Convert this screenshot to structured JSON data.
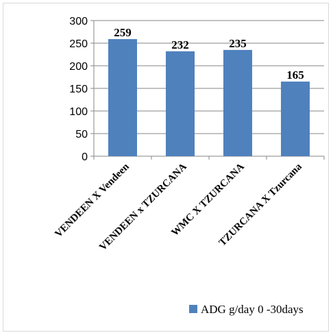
{
  "chart_data": {
    "type": "bar",
    "categories": [
      "VENDEEN X Vendeen",
      "VENDEEN x TZURCANA",
      "WMC X TZURCANA",
      "TZURCANA X Tzurcana"
    ],
    "series": [
      {
        "name": "ADG g/day 0 -30days",
        "values": [
          259,
          232,
          235,
          165
        ],
        "color": "#4f81bd"
      }
    ],
    "data_labels": [
      "259",
      "232",
      "235",
      "165"
    ],
    "ylim": [
      0,
      300
    ],
    "yticks": [
      "0",
      "50",
      "100",
      "150",
      "200",
      "250",
      "300"
    ],
    "grid": true,
    "legend_position": "bottom-right",
    "title": "",
    "xlabel": "",
    "ylabel": ""
  }
}
